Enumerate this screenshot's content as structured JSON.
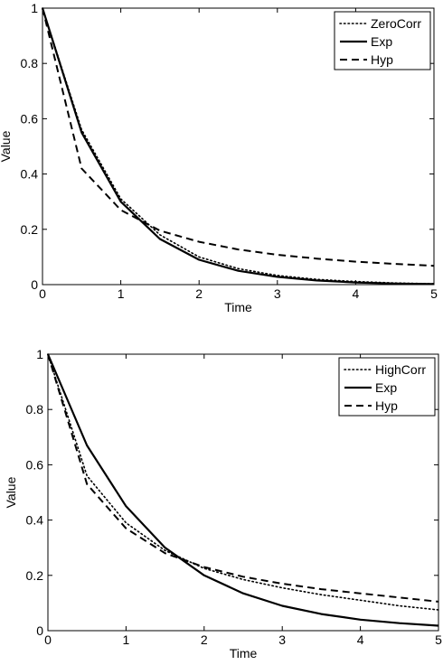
{
  "chart_data": [
    {
      "type": "line",
      "xlabel": "Time",
      "ylabel": "Value",
      "xlim": [
        0,
        5
      ],
      "ylim": [
        0,
        1
      ],
      "xticks": [
        "0",
        "1",
        "2",
        "3",
        "4",
        "5"
      ],
      "yticks": [
        "0",
        "0.2",
        "0.4",
        "0.6",
        "0.8",
        "1"
      ],
      "grid": false,
      "legend_position": "top-right",
      "x": [
        0,
        0.5,
        1,
        1.5,
        2,
        2.5,
        3,
        3.5,
        4,
        4.5,
        5
      ],
      "series": [
        {
          "name": "ZeroCorr",
          "style": "dotted",
          "values": [
            1.0,
            0.56,
            0.31,
            0.18,
            0.1,
            0.058,
            0.033,
            0.019,
            0.011,
            0.006,
            0.003
          ]
        },
        {
          "name": "Exp",
          "style": "solid",
          "values": [
            1.0,
            0.55,
            0.3,
            0.165,
            0.09,
            0.05,
            0.028,
            0.015,
            0.008,
            0.004,
            0.002
          ]
        },
        {
          "name": "Hyp",
          "style": "dashed",
          "values": [
            1.0,
            0.42,
            0.27,
            0.195,
            0.155,
            0.127,
            0.108,
            0.094,
            0.083,
            0.075,
            0.068
          ]
        }
      ]
    },
    {
      "type": "line",
      "xlabel": "Time",
      "ylabel": "Value",
      "xlim": [
        0,
        5
      ],
      "ylim": [
        0,
        1
      ],
      "xticks": [
        "0",
        "1",
        "2",
        "3",
        "4",
        "5"
      ],
      "yticks": [
        "0",
        "0.2",
        "0.4",
        "0.6",
        "0.8",
        "1"
      ],
      "grid": false,
      "legend_position": "top-right",
      "x": [
        0,
        0.5,
        1,
        1.5,
        2,
        2.5,
        3,
        3.5,
        4,
        4.5,
        5
      ],
      "series": [
        {
          "name": "HighCorr",
          "style": "dotted",
          "values": [
            1.0,
            0.56,
            0.39,
            0.29,
            0.225,
            0.185,
            0.155,
            0.13,
            0.11,
            0.09,
            0.075
          ]
        },
        {
          "name": "Exp",
          "style": "solid",
          "values": [
            1.0,
            0.67,
            0.45,
            0.3,
            0.2,
            0.135,
            0.09,
            0.06,
            0.04,
            0.027,
            0.018
          ]
        },
        {
          "name": "Hyp",
          "style": "dashed",
          "values": [
            1.0,
            0.53,
            0.37,
            0.28,
            0.23,
            0.195,
            0.17,
            0.15,
            0.135,
            0.12,
            0.105
          ]
        }
      ]
    }
  ]
}
